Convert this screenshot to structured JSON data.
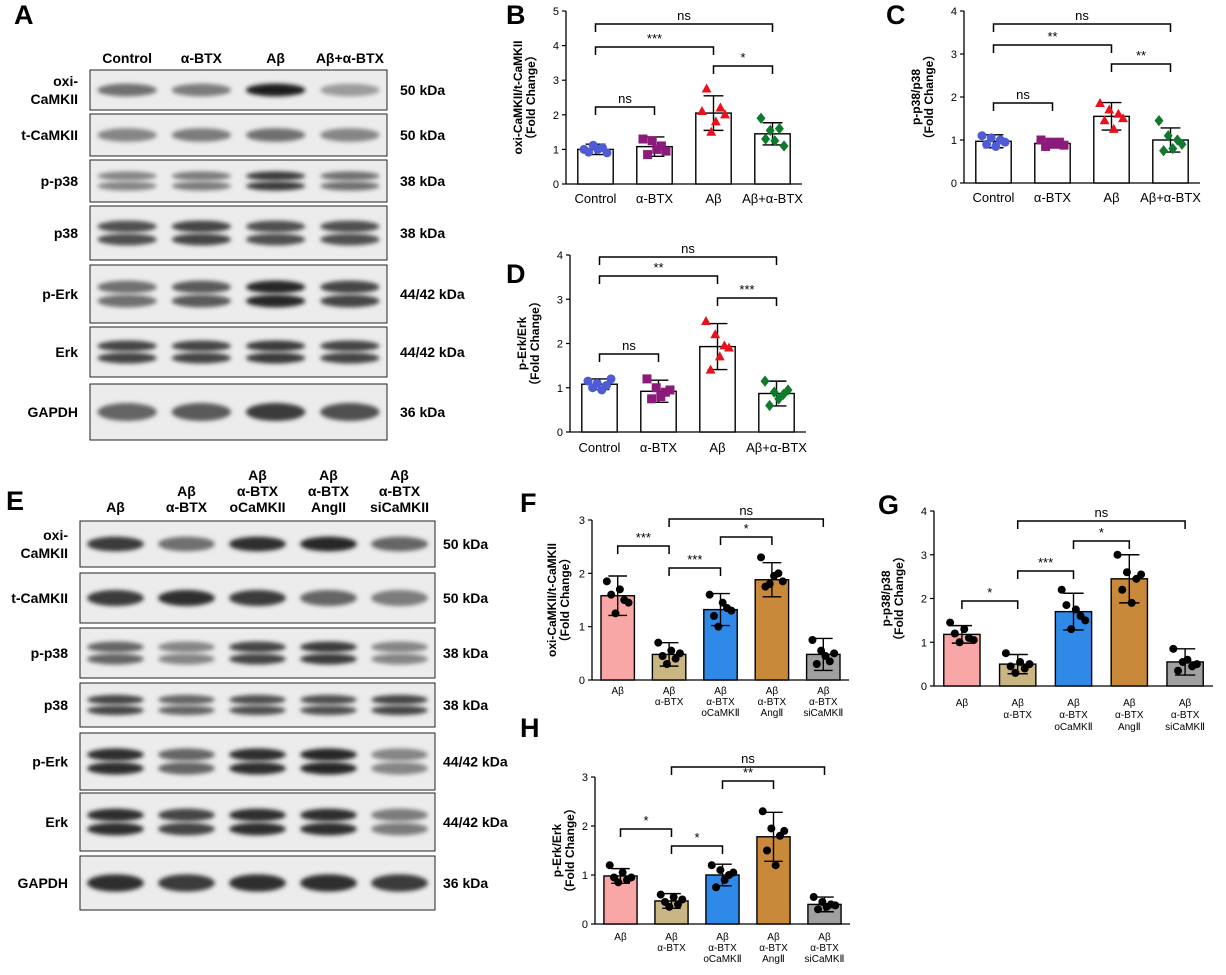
{
  "panels": {
    "A": "A",
    "B": "B",
    "C": "C",
    "D": "D",
    "E": "E",
    "F": "F",
    "G": "G",
    "H": "H"
  },
  "blot_A": {
    "lanes": [
      "Control",
      "α-BTX",
      "Aβ",
      "Aβ+α-BTX"
    ],
    "rows": [
      {
        "label": [
          "oxi-",
          "CaMKII"
        ],
        "kda": "50 kDa",
        "intensity": [
          0.55,
          0.5,
          0.95,
          0.35
        ]
      },
      {
        "label": [
          "t-CaMKII"
        ],
        "kda": "50 kDa",
        "intensity": [
          0.45,
          0.5,
          0.55,
          0.45
        ]
      },
      {
        "label": [
          "p-p38"
        ],
        "kda": "38 kDa",
        "intensity": [
          0.45,
          0.5,
          0.8,
          0.55
        ]
      },
      {
        "label": [
          "p38"
        ],
        "kda": "38 kDa",
        "intensity": [
          0.7,
          0.75,
          0.7,
          0.7
        ]
      },
      {
        "label": [
          "p-Erk"
        ],
        "kda": "44/42 kDa",
        "intensity": [
          0.55,
          0.65,
          0.9,
          0.75
        ]
      },
      {
        "label": [
          "Erk"
        ],
        "kda": "44/42 kDa",
        "intensity": [
          0.75,
          0.75,
          0.8,
          0.75
        ]
      },
      {
        "label": [
          "GAPDH"
        ],
        "kda": "36 kDa",
        "intensity": [
          0.6,
          0.65,
          0.8,
          0.7
        ]
      }
    ]
  },
  "blot_E": {
    "lanes": [
      [
        "Aβ"
      ],
      [
        "Aβ",
        "α-BTX"
      ],
      [
        "Aβ",
        "α-BTX",
        "oCaMKII"
      ],
      [
        "Aβ",
        "α-BTX",
        "AngII"
      ],
      [
        "Aβ",
        "α-BTX",
        "siCaMKII"
      ]
    ],
    "rows": [
      {
        "label": [
          "oxi-",
          "CaMKII"
        ],
        "kda": "50 kDa",
        "intensity": [
          0.8,
          0.55,
          0.85,
          0.9,
          0.6
        ]
      },
      {
        "label": [
          "t-CaMKII"
        ],
        "kda": "50 kDa",
        "intensity": [
          0.8,
          0.85,
          0.8,
          0.6,
          0.5
        ]
      },
      {
        "label": [
          "p-p38"
        ],
        "kda": "38 kDa",
        "intensity": [
          0.6,
          0.45,
          0.75,
          0.8,
          0.45
        ]
      },
      {
        "label": [
          "p38"
        ],
        "kda": "38 kDa",
        "intensity": [
          0.75,
          0.6,
          0.7,
          0.7,
          0.75
        ]
      },
      {
        "label": [
          "p-Erk"
        ],
        "kda": "44/42 kDa",
        "intensity": [
          0.85,
          0.6,
          0.85,
          0.9,
          0.45
        ]
      },
      {
        "label": [
          "Erk"
        ],
        "kda": "44/42 kDa",
        "intensity": [
          0.85,
          0.75,
          0.85,
          0.85,
          0.5
        ]
      },
      {
        "label": [
          "GAPDH"
        ],
        "kda": "36 kDa",
        "intensity": [
          0.85,
          0.8,
          0.85,
          0.85,
          0.8
        ]
      }
    ]
  },
  "chart_data": [
    {
      "id": "B",
      "type": "bar",
      "categories": [
        "Control",
        "α-BTX",
        "Aβ",
        "Aβ+α-BTX"
      ],
      "ylabel": [
        "oxi-CaMKII/t-CaMKII",
        "（Fold Change）"
      ],
      "ylim": [
        0,
        5
      ],
      "yticks": [
        0,
        1,
        2,
        3,
        4,
        5
      ],
      "values": [
        1.0,
        1.08,
        2.05,
        1.45
      ],
      "errors": [
        0.15,
        0.28,
        0.5,
        0.32
      ],
      "points": [
        [
          1.0,
          0.92,
          1.12,
          1.0,
          1.05,
          0.9
        ],
        [
          1.3,
          0.85,
          1.25,
          1.0,
          1.1,
          0.95
        ],
        [
          2.1,
          2.75,
          1.5,
          1.8,
          2.2,
          2.0
        ],
        [
          1.9,
          1.3,
          1.55,
          1.25,
          1.6,
          1.1
        ]
      ],
      "colors": [
        "#4f5bd5",
        "#8b1a7a",
        "#e8121f",
        "#0f7a2c"
      ],
      "markers": [
        "circle",
        "square",
        "triangle",
        "diamond"
      ],
      "bar_fill": [
        "#ffffff",
        "#ffffff",
        "#ffffff",
        "#ffffff"
      ],
      "brackets": [
        [
          0,
          3,
          "ns"
        ],
        [
          0,
          2,
          "***"
        ],
        [
          2,
          3,
          "*"
        ],
        [
          0,
          1,
          "ns"
        ]
      ]
    },
    {
      "id": "C",
      "type": "bar",
      "categories": [
        "Control",
        "α-BTX",
        "Aβ",
        "Aβ+α-BTX"
      ],
      "ylabel": [
        "p-p38/p38",
        "（Fold Change）"
      ],
      "ylim": [
        0,
        4
      ],
      "yticks": [
        0,
        1,
        2,
        3,
        4
      ],
      "values": [
        0.97,
        0.92,
        1.55,
        1.0
      ],
      "errors": [
        0.15,
        0.1,
        0.32,
        0.28
      ],
      "points": [
        [
          1.1,
          0.9,
          1.05,
          0.85,
          1.0,
          0.95
        ],
        [
          1.0,
          0.85,
          0.95,
          0.9,
          0.95,
          0.88
        ],
        [
          1.85,
          1.45,
          1.7,
          1.25,
          1.6,
          1.5
        ],
        [
          1.45,
          0.75,
          1.1,
          0.8,
          1.0,
          0.9
        ]
      ],
      "colors": [
        "#4f5bd5",
        "#8b1a7a",
        "#e8121f",
        "#0f7a2c"
      ],
      "markers": [
        "circle",
        "square",
        "triangle",
        "diamond"
      ],
      "bar_fill": [
        "#ffffff",
        "#ffffff",
        "#ffffff",
        "#ffffff"
      ],
      "brackets": [
        [
          0,
          3,
          "ns"
        ],
        [
          0,
          2,
          "**"
        ],
        [
          2,
          3,
          "**"
        ],
        [
          0,
          1,
          "ns"
        ]
      ]
    },
    {
      "id": "D",
      "type": "bar",
      "categories": [
        "Control",
        "α-BTX",
        "Aβ",
        "Aβ+α-BTX"
      ],
      "ylabel": [
        "p-Erk/Erk",
        "（Fold Change）"
      ],
      "ylim": [
        0,
        4
      ],
      "yticks": [
        0,
        1,
        2,
        3,
        4
      ],
      "values": [
        1.08,
        0.92,
        1.93,
        0.87
      ],
      "errors": [
        0.12,
        0.25,
        0.52,
        0.28
      ],
      "points": [
        [
          1.15,
          1.0,
          1.1,
          0.95,
          1.05,
          1.2
        ],
        [
          1.2,
          0.75,
          1.0,
          0.8,
          0.9,
          0.95
        ],
        [
          2.5,
          1.4,
          2.2,
          1.7,
          1.95,
          1.9
        ],
        [
          1.15,
          0.6,
          0.9,
          0.75,
          0.85,
          0.95
        ]
      ],
      "colors": [
        "#4f5bd5",
        "#8b1a7a",
        "#e8121f",
        "#0f7a2c"
      ],
      "markers": [
        "circle",
        "square",
        "triangle",
        "diamond"
      ],
      "bar_fill": [
        "#ffffff",
        "#ffffff",
        "#ffffff",
        "#ffffff"
      ],
      "brackets": [
        [
          0,
          3,
          "ns"
        ],
        [
          0,
          2,
          "**"
        ],
        [
          2,
          3,
          "***"
        ],
        [
          0,
          1,
          "ns"
        ]
      ]
    },
    {
      "id": "F",
      "type": "bar",
      "categories": [
        [
          "Aβ"
        ],
        [
          "Aβ",
          "α-BTX"
        ],
        [
          "Aβ",
          "α-BTX",
          "oCaMKⅡ"
        ],
        [
          "Aβ",
          "α-BTX",
          "AngⅡ"
        ],
        [
          "Aβ",
          "α-BTX",
          "siCaMKⅡ"
        ]
      ],
      "ylabel": [
        "oxi-CaMKII/t-CaMKII",
        "（Fold Change）"
      ],
      "ylim": [
        0,
        3
      ],
      "yticks": [
        0,
        1,
        2,
        3
      ],
      "values": [
        1.58,
        0.48,
        1.32,
        1.88,
        0.48
      ],
      "errors": [
        0.37,
        0.22,
        0.3,
        0.32,
        0.3
      ],
      "points": [
        [
          1.85,
          1.6,
          1.25,
          1.7,
          1.5,
          1.45
        ],
        [
          0.7,
          0.45,
          0.3,
          0.55,
          0.4,
          0.5
        ],
        [
          1.6,
          1.2,
          1.0,
          1.45,
          1.35,
          1.3
        ],
        [
          2.3,
          1.75,
          1.8,
          1.95,
          2.0,
          1.85
        ],
        [
          0.75,
          0.3,
          0.55,
          0.45,
          0.35,
          0.5
        ]
      ],
      "colors": [
        "#000000",
        "#000000",
        "#000000",
        "#000000",
        "#000000"
      ],
      "markers": [
        "circle",
        "circle",
        "circle",
        "circle",
        "circle"
      ],
      "bar_fill": [
        "#f9a6a6",
        "#c9b682",
        "#2e8ae6",
        "#c8893a",
        "#a0a0a0"
      ],
      "brackets": [
        [
          1,
          4,
          "ns"
        ],
        [
          0,
          1,
          "***"
        ],
        [
          2,
          3,
          "*"
        ],
        [
          1,
          2,
          "***"
        ]
      ]
    },
    {
      "id": "G",
      "type": "bar",
      "categories": [
        [
          "Aβ"
        ],
        [
          "Aβ",
          "α-BTX"
        ],
        [
          "Aβ",
          "α-BTX",
          "oCaMKⅡ"
        ],
        [
          "Aβ",
          "α-BTX",
          "AngⅡ"
        ],
        [
          "Aβ",
          "α-BTX",
          "siCaMKⅡ"
        ]
      ],
      "ylabel": [
        "p-p38/p38",
        "（Fold Change）"
      ],
      "ylim": [
        0,
        4
      ],
      "yticks": [
        0,
        1,
        2,
        3,
        4
      ],
      "values": [
        1.18,
        0.5,
        1.7,
        2.45,
        0.55
      ],
      "errors": [
        0.2,
        0.22,
        0.42,
        0.55,
        0.3
      ],
      "points": [
        [
          1.45,
          1.2,
          1.0,
          1.3,
          1.1,
          1.05
        ],
        [
          0.75,
          0.45,
          0.3,
          0.55,
          0.4,
          0.5
        ],
        [
          2.2,
          1.85,
          1.3,
          1.75,
          1.6,
          1.5
        ],
        [
          3.0,
          2.2,
          2.6,
          1.9,
          2.45,
          2.55
        ],
        [
          0.85,
          0.35,
          0.55,
          0.6,
          0.45,
          0.5
        ]
      ],
      "colors": [
        "#000000",
        "#000000",
        "#000000",
        "#000000",
        "#000000"
      ],
      "markers": [
        "circle",
        "circle",
        "circle",
        "circle",
        "circle"
      ],
      "bar_fill": [
        "#f9a6a6",
        "#c9b682",
        "#2e8ae6",
        "#c8893a",
        "#a0a0a0"
      ],
      "brackets": [
        [
          1,
          4,
          "ns"
        ],
        [
          0,
          1,
          "*"
        ],
        [
          2,
          3,
          "*"
        ],
        [
          1,
          2,
          "***"
        ]
      ]
    },
    {
      "id": "H",
      "type": "bar",
      "categories": [
        [
          "Aβ"
        ],
        [
          "Aβ",
          "α-BTX"
        ],
        [
          "Aβ",
          "α-BTX",
          "oCaMKⅡ"
        ],
        [
          "Aβ",
          "α-BTX",
          "AngⅡ"
        ],
        [
          "Aβ",
          "α-BTX",
          "siCaMKⅡ"
        ]
      ],
      "ylabel": [
        "p-Erk/Erk",
        "（Fold Change）"
      ],
      "ylim": [
        0,
        3
      ],
      "yticks": [
        0,
        1,
        2,
        3
      ],
      "values": [
        0.98,
        0.47,
        1.0,
        1.78,
        0.4
      ],
      "errors": [
        0.15,
        0.15,
        0.22,
        0.5,
        0.15
      ],
      "points": [
        [
          1.2,
          0.95,
          0.85,
          1.05,
          0.9,
          0.95
        ],
        [
          0.6,
          0.45,
          0.35,
          0.55,
          0.4,
          0.5
        ],
        [
          1.2,
          0.75,
          1.1,
          0.9,
          1.0,
          1.05
        ],
        [
          2.3,
          1.5,
          1.95,
          1.2,
          1.8,
          1.9
        ],
        [
          0.55,
          0.3,
          0.45,
          0.35,
          0.4,
          0.38
        ]
      ],
      "colors": [
        "#000000",
        "#000000",
        "#000000",
        "#000000",
        "#000000"
      ],
      "markers": [
        "circle",
        "circle",
        "circle",
        "circle",
        "circle"
      ],
      "bar_fill": [
        "#f9a6a6",
        "#c9b682",
        "#2e8ae6",
        "#c8893a",
        "#a0a0a0"
      ],
      "brackets": [
        [
          1,
          4,
          "ns"
        ],
        [
          0,
          1,
          "*"
        ],
        [
          2,
          3,
          "**"
        ],
        [
          1,
          2,
          "*"
        ]
      ]
    }
  ]
}
